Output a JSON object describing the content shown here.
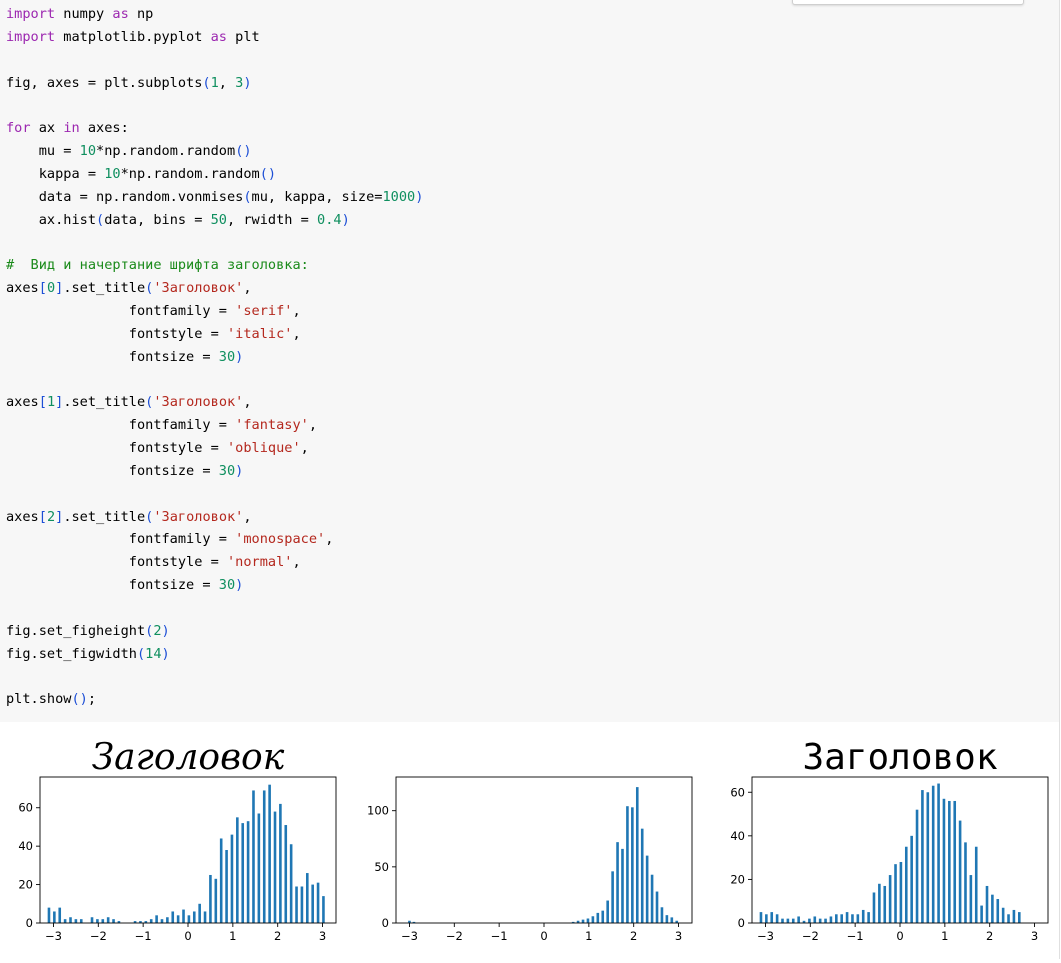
{
  "code": {
    "lines": [
      [
        {
          "t": "import",
          "c": "kw"
        },
        {
          "t": " numpy "
        },
        {
          "t": "as",
          "c": "kw"
        },
        {
          "t": " np"
        }
      ],
      [
        {
          "t": "import",
          "c": "kw"
        },
        {
          "t": " matplotlib.pyplot "
        },
        {
          "t": "as",
          "c": "kw"
        },
        {
          "t": " plt"
        }
      ],
      [],
      [
        {
          "t": "fig, axes = plt.subplots"
        },
        {
          "t": "(",
          "c": "paren"
        },
        {
          "t": "1",
          "c": "num"
        },
        {
          "t": ", "
        },
        {
          "t": "3",
          "c": "num"
        },
        {
          "t": ")",
          "c": "paren"
        }
      ],
      [],
      [
        {
          "t": "for",
          "c": "kw"
        },
        {
          "t": " ax "
        },
        {
          "t": "in",
          "c": "kw"
        },
        {
          "t": " axes:"
        }
      ],
      [
        {
          "t": "    mu = "
        },
        {
          "t": "10",
          "c": "num"
        },
        {
          "t": "*np.random.random"
        },
        {
          "t": "()",
          "c": "paren"
        }
      ],
      [
        {
          "t": "    kappa = "
        },
        {
          "t": "10",
          "c": "num"
        },
        {
          "t": "*np.random.random"
        },
        {
          "t": "()",
          "c": "paren"
        }
      ],
      [
        {
          "t": "    data = np.random.vonmises"
        },
        {
          "t": "(",
          "c": "paren"
        },
        {
          "t": "mu, kappa, size="
        },
        {
          "t": "1000",
          "c": "num"
        },
        {
          "t": ")",
          "c": "paren"
        }
      ],
      [
        {
          "t": "    ax.hist"
        },
        {
          "t": "(",
          "c": "paren"
        },
        {
          "t": "data, bins = "
        },
        {
          "t": "50",
          "c": "num"
        },
        {
          "t": ", rwidth = "
        },
        {
          "t": "0.4",
          "c": "num"
        },
        {
          "t": ")",
          "c": "paren"
        }
      ],
      [],
      [
        {
          "t": "#  Вид и начертание шрифта заголовка:",
          "c": "cm"
        }
      ],
      [
        {
          "t": "axes"
        },
        {
          "t": "[",
          "c": "paren"
        },
        {
          "t": "0",
          "c": "num"
        },
        {
          "t": "]",
          "c": "paren"
        },
        {
          "t": ".set_title"
        },
        {
          "t": "(",
          "c": "paren"
        },
        {
          "t": "'Заголовок'",
          "c": "str"
        },
        {
          "t": ","
        }
      ],
      [
        {
          "t": "               fontfamily = "
        },
        {
          "t": "'serif'",
          "c": "str"
        },
        {
          "t": ","
        }
      ],
      [
        {
          "t": "               fontstyle = "
        },
        {
          "t": "'italic'",
          "c": "str"
        },
        {
          "t": ","
        }
      ],
      [
        {
          "t": "               fontsize = "
        },
        {
          "t": "30",
          "c": "num"
        },
        {
          "t": ")",
          "c": "paren"
        }
      ],
      [],
      [
        {
          "t": "axes"
        },
        {
          "t": "[",
          "c": "paren"
        },
        {
          "t": "1",
          "c": "num"
        },
        {
          "t": "]",
          "c": "paren"
        },
        {
          "t": ".set_title"
        },
        {
          "t": "(",
          "c": "paren"
        },
        {
          "t": "'Заголовок'",
          "c": "str"
        },
        {
          "t": ","
        }
      ],
      [
        {
          "t": "               fontfamily = "
        },
        {
          "t": "'fantasy'",
          "c": "str"
        },
        {
          "t": ","
        }
      ],
      [
        {
          "t": "               fontstyle = "
        },
        {
          "t": "'oblique'",
          "c": "str"
        },
        {
          "t": ","
        }
      ],
      [
        {
          "t": "               fontsize = "
        },
        {
          "t": "30",
          "c": "num"
        },
        {
          "t": ")",
          "c": "paren"
        }
      ],
      [],
      [
        {
          "t": "axes"
        },
        {
          "t": "[",
          "c": "paren"
        },
        {
          "t": "2",
          "c": "num"
        },
        {
          "t": "]",
          "c": "paren"
        },
        {
          "t": ".set_title"
        },
        {
          "t": "(",
          "c": "paren"
        },
        {
          "t": "'Заголовок'",
          "c": "str"
        },
        {
          "t": ","
        }
      ],
      [
        {
          "t": "               fontfamily = "
        },
        {
          "t": "'monospace'",
          "c": "str"
        },
        {
          "t": ","
        }
      ],
      [
        {
          "t": "               fontstyle = "
        },
        {
          "t": "'normal'",
          "c": "str"
        },
        {
          "t": ","
        }
      ],
      [
        {
          "t": "               fontsize = "
        },
        {
          "t": "30",
          "c": "num"
        },
        {
          "t": ")",
          "c": "paren"
        }
      ],
      [],
      [
        {
          "t": "fig.set_figheight"
        },
        {
          "t": "(",
          "c": "paren"
        },
        {
          "t": "2",
          "c": "num"
        },
        {
          "t": ")",
          "c": "paren"
        }
      ],
      [
        {
          "t": "fig.set_figwidth"
        },
        {
          "t": "(",
          "c": "paren"
        },
        {
          "t": "14",
          "c": "num"
        },
        {
          "t": ")",
          "c": "paren"
        }
      ],
      [],
      [
        {
          "t": "plt.show"
        },
        {
          "t": "()",
          "c": "paren"
        },
        {
          "t": ";"
        }
      ]
    ]
  },
  "colors": {
    "bar": "#1f77b4",
    "keyword": "#9c27b0",
    "number": "#0f8f5f",
    "string": "#b4281e",
    "comment": "#1a8a1a",
    "paren": "#1d4fd6"
  },
  "chart_data": [
    {
      "type": "bar",
      "title": "Заголовок",
      "title_style": "serif-italic",
      "xlim": [
        -3.3,
        3.3
      ],
      "ylim": [
        0,
        76
      ],
      "xticks": [
        -3,
        -2,
        -1,
        0,
        1,
        2,
        3
      ],
      "xtick_labels": [
        "−3",
        "−2",
        "−1",
        "0",
        "1",
        "2",
        "3"
      ],
      "yticks": [
        0,
        20,
        40,
        60
      ],
      "ytick_labels": [
        "0",
        "20",
        "40",
        "60"
      ],
      "bins": [
        {
          "x": -3.1,
          "y": 8
        },
        {
          "x": -2.98,
          "y": 6
        },
        {
          "x": -2.86,
          "y": 8
        },
        {
          "x": -2.74,
          "y": 2
        },
        {
          "x": -2.62,
          "y": 3
        },
        {
          "x": -2.5,
          "y": 2
        },
        {
          "x": -2.38,
          "y": 2
        },
        {
          "x": -2.14,
          "y": 3
        },
        {
          "x": -2.02,
          "y": 2
        },
        {
          "x": -1.9,
          "y": 2
        },
        {
          "x": -1.78,
          "y": 3
        },
        {
          "x": -1.66,
          "y": 2
        },
        {
          "x": -1.54,
          "y": 1
        },
        {
          "x": -1.18,
          "y": 1
        },
        {
          "x": -1.06,
          "y": 1
        },
        {
          "x": -0.94,
          "y": 1
        },
        {
          "x": -0.82,
          "y": 2
        },
        {
          "x": -0.7,
          "y": 4
        },
        {
          "x": -0.58,
          "y": 2
        },
        {
          "x": -0.46,
          "y": 3
        },
        {
          "x": -0.34,
          "y": 6
        },
        {
          "x": -0.22,
          "y": 4
        },
        {
          "x": -0.1,
          "y": 7
        },
        {
          "x": 0.02,
          "y": 4
        },
        {
          "x": 0.14,
          "y": 6
        },
        {
          "x": 0.26,
          "y": 10
        },
        {
          "x": 0.38,
          "y": 6
        },
        {
          "x": 0.5,
          "y": 25
        },
        {
          "x": 0.62,
          "y": 23
        },
        {
          "x": 0.74,
          "y": 44
        },
        {
          "x": 0.86,
          "y": 38
        },
        {
          "x": 0.98,
          "y": 46
        },
        {
          "x": 1.1,
          "y": 55
        },
        {
          "x": 1.22,
          "y": 52
        },
        {
          "x": 1.34,
          "y": 53
        },
        {
          "x": 1.46,
          "y": 69
        },
        {
          "x": 1.58,
          "y": 57
        },
        {
          "x": 1.7,
          "y": 69
        },
        {
          "x": 1.82,
          "y": 72
        },
        {
          "x": 1.94,
          "y": 58
        },
        {
          "x": 2.06,
          "y": 62
        },
        {
          "x": 2.18,
          "y": 51
        },
        {
          "x": 2.3,
          "y": 41
        },
        {
          "x": 2.42,
          "y": 19
        },
        {
          "x": 2.54,
          "y": 19
        },
        {
          "x": 2.66,
          "y": 26
        },
        {
          "x": 2.78,
          "y": 20
        },
        {
          "x": 2.9,
          "y": 21
        },
        {
          "x": 3.02,
          "y": 14
        }
      ]
    },
    {
      "type": "bar",
      "title": "",
      "xlim": [
        -3.3,
        3.3
      ],
      "ylim": [
        0,
        130
      ],
      "xticks": [
        -3,
        -2,
        -1,
        0,
        1,
        2,
        3
      ],
      "xtick_labels": [
        "−3",
        "−2",
        "−1",
        "0",
        "1",
        "2",
        "3"
      ],
      "yticks": [
        0,
        50,
        100
      ],
      "ytick_labels": [
        "0",
        "50",
        "100"
      ],
      "bins": [
        {
          "x": -3.0,
          "y": 2
        },
        {
          "x": -2.9,
          "y": 1
        },
        {
          "x": 0.65,
          "y": 1
        },
        {
          "x": 0.76,
          "y": 2
        },
        {
          "x": 0.87,
          "y": 3
        },
        {
          "x": 0.98,
          "y": 4
        },
        {
          "x": 1.09,
          "y": 6
        },
        {
          "x": 1.2,
          "y": 9
        },
        {
          "x": 1.31,
          "y": 11
        },
        {
          "x": 1.42,
          "y": 20
        },
        {
          "x": 1.53,
          "y": 46
        },
        {
          "x": 1.64,
          "y": 72
        },
        {
          "x": 1.75,
          "y": 66
        },
        {
          "x": 1.86,
          "y": 104
        },
        {
          "x": 1.97,
          "y": 103
        },
        {
          "x": 2.08,
          "y": 121
        },
        {
          "x": 2.19,
          "y": 84
        },
        {
          "x": 2.3,
          "y": 60
        },
        {
          "x": 2.41,
          "y": 43
        },
        {
          "x": 2.52,
          "y": 28
        },
        {
          "x": 2.63,
          "y": 14
        },
        {
          "x": 2.74,
          "y": 7
        },
        {
          "x": 2.85,
          "y": 5
        },
        {
          "x": 2.96,
          "y": 2
        }
      ]
    },
    {
      "type": "bar",
      "title": "Заголовок",
      "title_style": "monospace",
      "xlim": [
        -3.3,
        3.3
      ],
      "ylim": [
        0,
        67
      ],
      "xticks": [
        -3,
        -2,
        -1,
        0,
        1,
        2,
        3
      ],
      "xtick_labels": [
        "−3",
        "−2",
        "−1",
        "0",
        "1",
        "2",
        "3"
      ],
      "yticks": [
        0,
        20,
        40,
        60
      ],
      "ytick_labels": [
        "0",
        "20",
        "40",
        "60"
      ],
      "bins": [
        {
          "x": -3.1,
          "y": 5
        },
        {
          "x": -2.98,
          "y": 4
        },
        {
          "x": -2.86,
          "y": 5
        },
        {
          "x": -2.74,
          "y": 4
        },
        {
          "x": -2.62,
          "y": 2
        },
        {
          "x": -2.5,
          "y": 2
        },
        {
          "x": -2.38,
          "y": 2
        },
        {
          "x": -2.26,
          "y": 3
        },
        {
          "x": -2.14,
          "y": 1
        },
        {
          "x": -2.02,
          "y": 2
        },
        {
          "x": -1.9,
          "y": 3
        },
        {
          "x": -1.78,
          "y": 2
        },
        {
          "x": -1.66,
          "y": 2
        },
        {
          "x": -1.54,
          "y": 3
        },
        {
          "x": -1.42,
          "y": 4
        },
        {
          "x": -1.3,
          "y": 4
        },
        {
          "x": -1.18,
          "y": 5
        },
        {
          "x": -1.06,
          "y": 4
        },
        {
          "x": -0.94,
          "y": 4
        },
        {
          "x": -0.82,
          "y": 6
        },
        {
          "x": -0.7,
          "y": 5
        },
        {
          "x": -0.58,
          "y": 14
        },
        {
          "x": -0.46,
          "y": 18
        },
        {
          "x": -0.34,
          "y": 17
        },
        {
          "x": -0.22,
          "y": 22
        },
        {
          "x": -0.1,
          "y": 27
        },
        {
          "x": 0.02,
          "y": 28
        },
        {
          "x": 0.14,
          "y": 35
        },
        {
          "x": 0.26,
          "y": 40
        },
        {
          "x": 0.38,
          "y": 52
        },
        {
          "x": 0.5,
          "y": 61
        },
        {
          "x": 0.62,
          "y": 60
        },
        {
          "x": 0.74,
          "y": 63
        },
        {
          "x": 0.86,
          "y": 64
        },
        {
          "x": 0.98,
          "y": 57
        },
        {
          "x": 1.1,
          "y": 56
        },
        {
          "x": 1.22,
          "y": 56
        },
        {
          "x": 1.34,
          "y": 47
        },
        {
          "x": 1.46,
          "y": 37
        },
        {
          "x": 1.58,
          "y": 22
        },
        {
          "x": 1.7,
          "y": 35
        },
        {
          "x": 1.82,
          "y": 8
        },
        {
          "x": 1.94,
          "y": 17
        },
        {
          "x": 2.06,
          "y": 13
        },
        {
          "x": 2.18,
          "y": 11
        },
        {
          "x": 2.3,
          "y": 7
        },
        {
          "x": 2.42,
          "y": 4
        },
        {
          "x": 2.54,
          "y": 6
        },
        {
          "x": 2.66,
          "y": 5
        }
      ]
    }
  ]
}
